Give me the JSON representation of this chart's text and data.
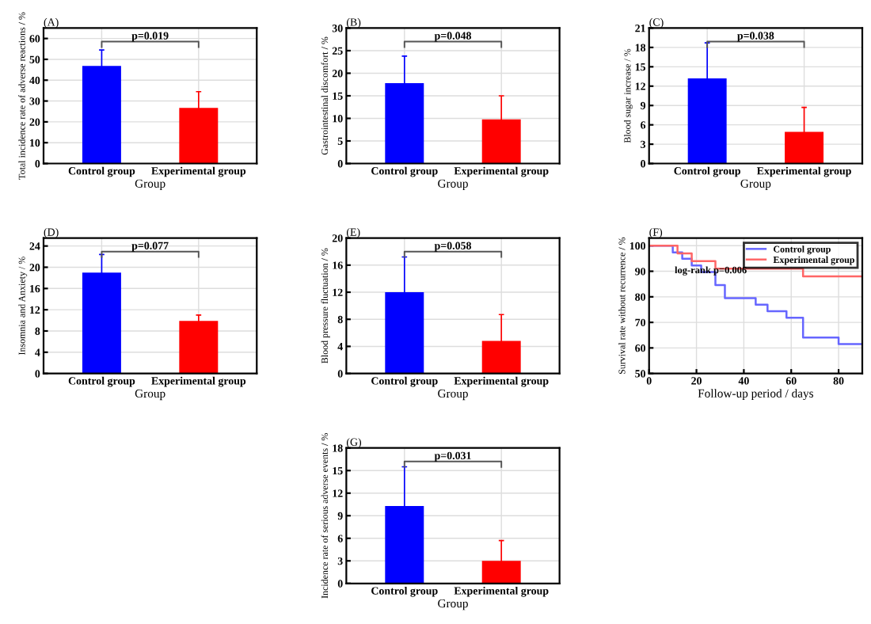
{
  "chart_data": [
    {
      "type": "bar",
      "title": "(A)",
      "xlabel": "Group",
      "ylabel": "Total incidence rate of adverse reactions / %",
      "categories": [
        "Control group",
        "Experimental group"
      ],
      "values": [
        46.8,
        26.7
      ],
      "errors": [
        7.7,
        7.8
      ],
      "colors": [
        "#0000ff",
        "#ff0000"
      ],
      "ylim": [
        0,
        65
      ],
      "yticks": [
        0,
        10,
        20,
        30,
        40,
        50,
        60
      ],
      "grid": true,
      "annotations": [
        "p=0.019"
      ]
    },
    {
      "type": "bar",
      "title": "(B)",
      "xlabel": "Group",
      "ylabel": "Gastrointestinal discomfort / %",
      "categories": [
        "Control group",
        "Experimental group"
      ],
      "values": [
        17.8,
        9.8
      ],
      "errors": [
        6.0,
        5.2
      ],
      "colors": [
        "#0000ff",
        "#ff0000"
      ],
      "ylim": [
        0,
        30
      ],
      "yticks": [
        0,
        5,
        10,
        15,
        20,
        25,
        30
      ],
      "grid": true,
      "annotations": [
        "p=0.048"
      ]
    },
    {
      "type": "bar",
      "title": "(C)",
      "xlabel": "Group",
      "ylabel": "Blood sugar increase / %",
      "categories": [
        "Control group",
        "Experimental group"
      ],
      "values": [
        13.2,
        4.9
      ],
      "errors": [
        5.5,
        3.8
      ],
      "colors": [
        "#0000ff",
        "#ff0000"
      ],
      "ylim": [
        0,
        21
      ],
      "yticks": [
        0,
        3,
        6,
        9,
        12,
        15,
        18,
        21
      ],
      "grid": true,
      "annotations": [
        "p=0.038"
      ]
    },
    {
      "type": "bar",
      "title": "(D)",
      "xlabel": "Group",
      "ylabel": "Insomnia and Anxiety / %",
      "categories": [
        "Control group",
        "Experimental group"
      ],
      "values": [
        19.0,
        9.9
      ],
      "errors": [
        3.4,
        1.1
      ],
      "colors": [
        "#0000ff",
        "#ff0000"
      ],
      "ylim": [
        0,
        25.5
      ],
      "yticks": [
        0,
        4,
        8,
        12,
        16,
        20,
        24
      ],
      "grid": true,
      "annotations": [
        "p=0.077"
      ]
    },
    {
      "type": "bar",
      "title": "(E)",
      "xlabel": "Group",
      "ylabel": "Blood pressure fluctuation / %",
      "categories": [
        "Control group",
        "Experimental group"
      ],
      "values": [
        12.0,
        4.8
      ],
      "errors": [
        5.2,
        3.9
      ],
      "colors": [
        "#0000ff",
        "#ff0000"
      ],
      "ylim": [
        0,
        20
      ],
      "yticks": [
        0,
        4,
        8,
        12,
        16,
        20
      ],
      "grid": true,
      "annotations": [
        "p=0.058"
      ]
    },
    {
      "type": "step",
      "title": "(F)",
      "xlabel": "Follow-up period / days",
      "ylabel": "Survival rate without recurrence / %",
      "series": [
        {
          "name": "Control group",
          "color": "#6666ff",
          "x": [
            0,
            10,
            14,
            18,
            22,
            28,
            32,
            45,
            50,
            58,
            65,
            80,
            90
          ],
          "values": [
            100,
            97.4,
            94.9,
            92.3,
            89.7,
            84.6,
            79.5,
            76.9,
            74.4,
            71.8,
            64.1,
            61.5,
            61.5
          ]
        },
        {
          "name": "Experimental group",
          "color": "#ff6666",
          "x": [
            0,
            12,
            18,
            28,
            65,
            90
          ],
          "values": [
            100,
            97,
            94,
            91,
            88,
            88
          ]
        }
      ],
      "xlim": [
        0,
        90
      ],
      "xticks": [
        0,
        20,
        40,
        60,
        80
      ],
      "ylim": [
        50,
        103
      ],
      "yticks": [
        50,
        60,
        70,
        80,
        90,
        100
      ],
      "grid": true,
      "legend": "top right",
      "annotations": [
        "log-rank p=0.006"
      ]
    },
    {
      "type": "bar",
      "title": "(G)",
      "xlabel": "Group",
      "ylabel": "Incidence rate of serious adverse events / %",
      "categories": [
        "Control group",
        "Experimental group"
      ],
      "values": [
        10.3,
        3.0
      ],
      "errors": [
        5.2,
        2.7
      ],
      "colors": [
        "#0000ff",
        "#ff0000"
      ],
      "ylim": [
        0,
        18
      ],
      "yticks": [
        0,
        3,
        6,
        9,
        12,
        15,
        18
      ],
      "grid": true,
      "annotations": [
        "p=0.031"
      ]
    }
  ]
}
